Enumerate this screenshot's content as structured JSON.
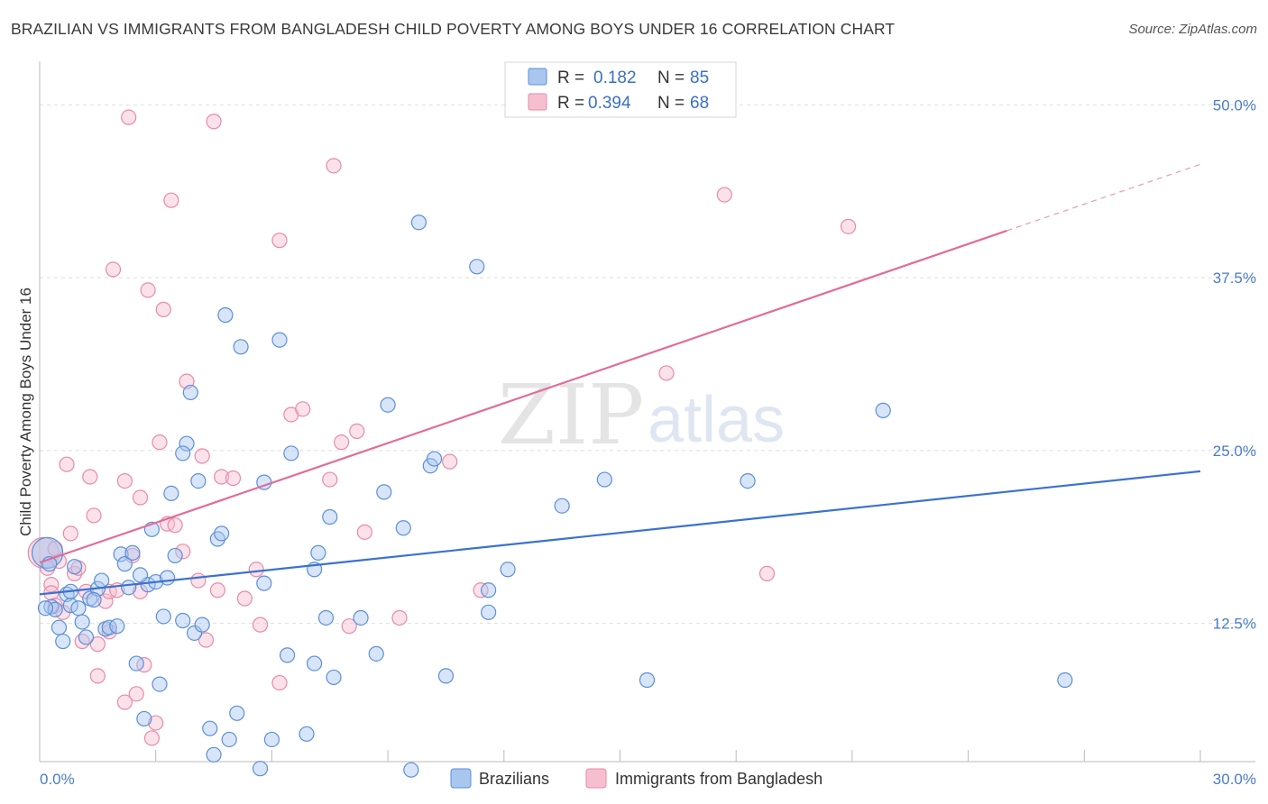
{
  "title": "BRAZILIAN VS IMMIGRANTS FROM BANGLADESH CHILD POVERTY AMONG BOYS UNDER 16 CORRELATION CHART",
  "source": "Source: ZipAtlas.com",
  "watermark": {
    "zip": "ZIP",
    "atlas": "atlas"
  },
  "legend": {
    "r_label": "R =",
    "n_label": "N =",
    "rows": [
      {
        "r": "0.182",
        "n": "85"
      },
      {
        "r": "0.394",
        "n": "68"
      }
    ]
  },
  "colors": {
    "brazilians_fill": "#a9c6ef",
    "brazilians_stroke": "#5b8fd9",
    "brazilians_line": "#3a72cf",
    "bangladesh_fill": "#f6bfd0",
    "bangladesh_stroke": "#e88aa8",
    "bangladesh_line": "#e26c97",
    "grid": "#dedede",
    "tick_text": "#4a7cc9"
  },
  "chart_data": {
    "type": "scatter",
    "title": "BRAZILIAN VS IMMIGRANTS FROM BANGLADESH CHILD POVERTY AMONG BOYS UNDER 16 CORRELATION CHART",
    "xlabel": "",
    "ylabel": "Child Poverty Among Boys Under 16",
    "xlim": [
      0,
      30
    ],
    "ylim": [
      2.5,
      52.5
    ],
    "x_tick_labels": [
      "0.0%",
      "30.0%"
    ],
    "y_ticks": [
      12.5,
      25.0,
      37.5,
      50.0
    ],
    "y_tick_labels": [
      "12.5%",
      "25.0%",
      "37.5%",
      "50.0%"
    ],
    "grid": true,
    "legend_position": "top-center",
    "series": [
      {
        "name": "Brazilians",
        "r": 0.182,
        "n": 85,
        "trend": {
          "x0": 0,
          "y0": 14.6,
          "x1": 30,
          "y1": 23.5
        },
        "points": [
          [
            0.2,
            17.6,
            "big"
          ],
          [
            0.3,
            13.7
          ],
          [
            0.4,
            13.5
          ],
          [
            0.5,
            12.2
          ],
          [
            0.6,
            11.2
          ],
          [
            0.7,
            14.6
          ],
          [
            0.8,
            13.8
          ],
          [
            0.9,
            16.6
          ],
          [
            0.8,
            14.8
          ],
          [
            1.0,
            13.6
          ],
          [
            1.1,
            12.6
          ],
          [
            1.2,
            11.5
          ],
          [
            1.3,
            14.3
          ],
          [
            1.5,
            15.0
          ],
          [
            1.6,
            15.6
          ],
          [
            1.7,
            12.1
          ],
          [
            1.8,
            12.2
          ],
          [
            2.0,
            12.3
          ],
          [
            2.1,
            17.5
          ],
          [
            2.2,
            16.8
          ],
          [
            2.3,
            15.1
          ],
          [
            2.4,
            17.6
          ],
          [
            2.5,
            9.6
          ],
          [
            2.7,
            5.6
          ],
          [
            2.8,
            15.3
          ],
          [
            2.9,
            19.3
          ],
          [
            3.0,
            15.5
          ],
          [
            3.1,
            8.1
          ],
          [
            3.2,
            13.0
          ],
          [
            3.3,
            15.8
          ],
          [
            3.4,
            21.9
          ],
          [
            3.5,
            17.4
          ],
          [
            3.7,
            12.7
          ],
          [
            3.8,
            25.5
          ],
          [
            3.7,
            24.8
          ],
          [
            3.9,
            29.2
          ],
          [
            4.0,
            11.8
          ],
          [
            4.1,
            22.8
          ],
          [
            4.2,
            12.4
          ],
          [
            4.4,
            4.9
          ],
          [
            4.5,
            3.0
          ],
          [
            4.6,
            18.6
          ],
          [
            4.7,
            19.0
          ],
          [
            4.8,
            34.8
          ],
          [
            4.9,
            4.1
          ],
          [
            5.1,
            6.0
          ],
          [
            5.2,
            32.5
          ],
          [
            5.7,
            2.0
          ],
          [
            5.8,
            15.4
          ],
          [
            5.8,
            22.7
          ],
          [
            6.0,
            4.1
          ],
          [
            6.2,
            33.0
          ],
          [
            6.4,
            10.2
          ],
          [
            6.5,
            24.8
          ],
          [
            6.9,
            4.5
          ],
          [
            7.1,
            9.6
          ],
          [
            7.2,
            17.6
          ],
          [
            7.1,
            16.4
          ],
          [
            7.4,
            12.9
          ],
          [
            7.5,
            20.2
          ],
          [
            7.6,
            8.6
          ],
          [
            8.3,
            12.9
          ],
          [
            8.7,
            10.3
          ],
          [
            8.9,
            22.0
          ],
          [
            9.0,
            28.3
          ],
          [
            9.4,
            19.4
          ],
          [
            9.6,
            1.9
          ],
          [
            10.1,
            23.9
          ],
          [
            10.2,
            24.4
          ],
          [
            9.8,
            41.5
          ],
          [
            10.5,
            8.7
          ],
          [
            11.3,
            38.3
          ],
          [
            11.6,
            14.9
          ],
          [
            11.6,
            13.3
          ],
          [
            12.1,
            16.4
          ],
          [
            13.5,
            21.0
          ],
          [
            14.6,
            22.9
          ],
          [
            15.7,
            8.4
          ],
          [
            18.3,
            22.8
          ],
          [
            21.8,
            27.9
          ],
          [
            26.5,
            8.4
          ],
          [
            0.15,
            13.6
          ],
          [
            0.25,
            16.8
          ],
          [
            1.4,
            14.2
          ],
          [
            2.6,
            16.0
          ]
        ]
      },
      {
        "name": "Immigrants from Bangladesh",
        "r": 0.394,
        "n": 68,
        "trend": {
          "x0": 0,
          "y0": 16.9,
          "x1": 25,
          "y1": 40.9,
          "dash_to_x": 30,
          "dash_to_y": 45.7
        },
        "points": [
          [
            0.1,
            17.6,
            "big"
          ],
          [
            0.2,
            16.5
          ],
          [
            0.3,
            15.3
          ],
          [
            0.3,
            14.7
          ],
          [
            0.4,
            13.8
          ],
          [
            0.5,
            17.0
          ],
          [
            0.6,
            13.3
          ],
          [
            0.7,
            24.0
          ],
          [
            0.8,
            19.0
          ],
          [
            0.9,
            16.1
          ],
          [
            1.0,
            16.5
          ],
          [
            1.1,
            11.2
          ],
          [
            1.2,
            14.8
          ],
          [
            1.3,
            23.1
          ],
          [
            1.4,
            20.3
          ],
          [
            1.5,
            11.0
          ],
          [
            1.5,
            8.7
          ],
          [
            1.7,
            14.1
          ],
          [
            1.8,
            14.8
          ],
          [
            1.8,
            11.9
          ],
          [
            1.9,
            38.1
          ],
          [
            2.0,
            14.9
          ],
          [
            2.2,
            22.8
          ],
          [
            2.2,
            6.8
          ],
          [
            2.3,
            49.1
          ],
          [
            2.5,
            7.4
          ],
          [
            2.4,
            17.4
          ],
          [
            2.6,
            14.8
          ],
          [
            2.6,
            21.6
          ],
          [
            2.7,
            9.5
          ],
          [
            2.8,
            36.6
          ],
          [
            2.9,
            4.2
          ],
          [
            3.0,
            5.3
          ],
          [
            3.1,
            25.6
          ],
          [
            3.2,
            35.2
          ],
          [
            3.3,
            19.7
          ],
          [
            3.4,
            43.1
          ],
          [
            3.5,
            19.6
          ],
          [
            3.7,
            17.7
          ],
          [
            3.8,
            30.0
          ],
          [
            4.1,
            15.6
          ],
          [
            4.2,
            24.6
          ],
          [
            4.3,
            11.3
          ],
          [
            4.5,
            48.8
          ],
          [
            4.6,
            14.9
          ],
          [
            4.7,
            23.1
          ],
          [
            5.0,
            23.0
          ],
          [
            5.3,
            14.3
          ],
          [
            5.6,
            16.4
          ],
          [
            5.7,
            12.4
          ],
          [
            6.2,
            8.2
          ],
          [
            6.2,
            40.2
          ],
          [
            6.5,
            27.6
          ],
          [
            6.8,
            28.0
          ],
          [
            7.5,
            22.9
          ],
          [
            7.6,
            45.6
          ],
          [
            7.8,
            25.6
          ],
          [
            8.0,
            12.3
          ],
          [
            8.2,
            26.4
          ],
          [
            8.4,
            19.1
          ],
          [
            9.3,
            12.9
          ],
          [
            10.6,
            24.2
          ],
          [
            11.4,
            14.9
          ],
          [
            16.2,
            30.6
          ],
          [
            17.7,
            43.5
          ],
          [
            18.8,
            16.1
          ],
          [
            20.9,
            41.2
          ],
          [
            0.4,
            17.9
          ]
        ]
      }
    ]
  },
  "bottom_legend": [
    "Brazilians",
    "Immigrants from Bangladesh"
  ]
}
